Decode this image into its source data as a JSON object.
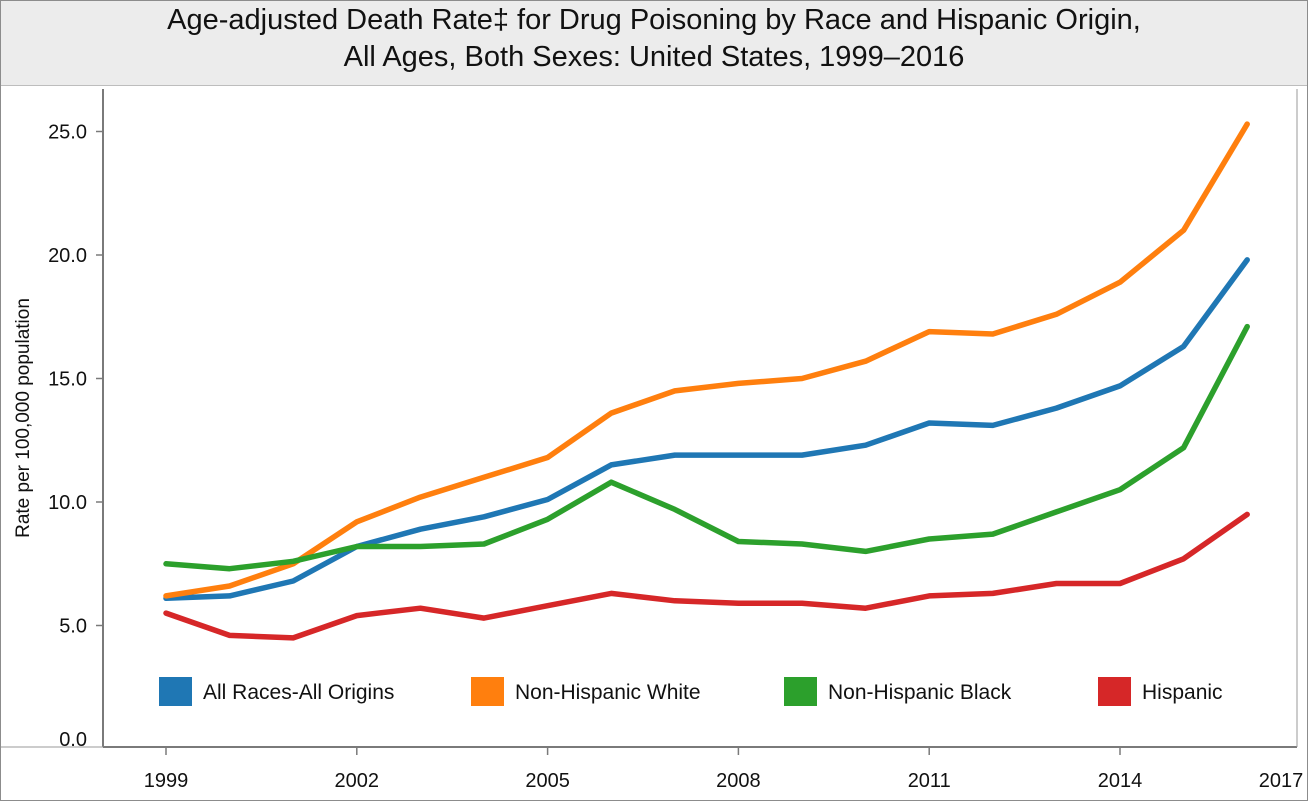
{
  "title_lines": [
    "Age-adjusted Death Rate‡ for Drug Poisoning by Race and Hispanic Origin,",
    "All Ages, Both Sexes: United States, 1999–2016"
  ],
  "chart_data": {
    "type": "line",
    "title": "Age-adjusted Death Rate‡ for Drug Poisoning by Race and Hispanic Origin, All Ages, Both Sexes: United States, 1999–2016",
    "xlabel": "",
    "ylabel": "Rate per 100,000 population",
    "x": [
      1999,
      2000,
      2001,
      2002,
      2003,
      2004,
      2005,
      2006,
      2007,
      2008,
      2009,
      2010,
      2011,
      2012,
      2013,
      2014,
      2015,
      2016
    ],
    "xlim": [
      1999,
      2017
    ],
    "ylim": [
      0,
      25
    ],
    "x_ticks": [
      "1999",
      "2002",
      "2005",
      "2008",
      "2011",
      "2014",
      "2017"
    ],
    "y_ticks": [
      "0.0",
      "5.0",
      "10.0",
      "15.0",
      "20.0",
      "25.0"
    ],
    "grid": false,
    "legend_position": "bottom",
    "series": [
      {
        "name": "All Races-All Origins",
        "color": "#1f77b4",
        "values": [
          6.1,
          6.2,
          6.8,
          8.2,
          8.9,
          9.4,
          10.1,
          11.5,
          11.9,
          11.9,
          11.9,
          12.3,
          13.2,
          13.1,
          13.8,
          14.7,
          16.3,
          19.8
        ]
      },
      {
        "name": "Non-Hispanic White",
        "color": "#ff7f0e",
        "values": [
          6.2,
          6.6,
          7.5,
          9.2,
          10.2,
          11.0,
          11.8,
          13.6,
          14.5,
          14.8,
          15.0,
          15.7,
          16.9,
          16.8,
          17.6,
          18.9,
          21.0,
          25.3
        ]
      },
      {
        "name": "Non-Hispanic Black",
        "color": "#2ca02c",
        "values": [
          7.5,
          7.3,
          7.6,
          8.2,
          8.2,
          8.3,
          9.3,
          10.8,
          9.7,
          8.4,
          8.3,
          8.0,
          8.5,
          8.7,
          9.6,
          10.5,
          12.2,
          17.1
        ]
      },
      {
        "name": "Hispanic",
        "color": "#d62728",
        "values": [
          5.5,
          4.6,
          4.5,
          5.4,
          5.7,
          5.3,
          5.8,
          6.3,
          6.0,
          5.9,
          5.9,
          5.7,
          6.2,
          6.3,
          6.7,
          6.7,
          7.7,
          9.5
        ]
      }
    ]
  }
}
